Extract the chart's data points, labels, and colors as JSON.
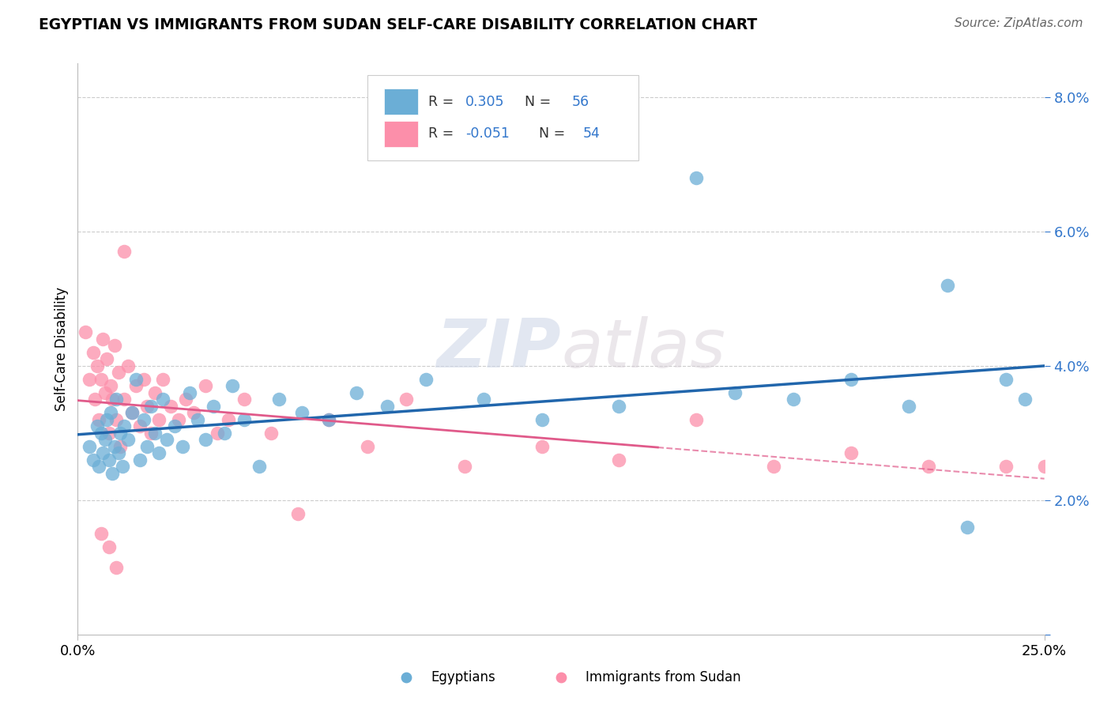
{
  "title": "EGYPTIAN VS IMMIGRANTS FROM SUDAN SELF-CARE DISABILITY CORRELATION CHART",
  "source": "Source: ZipAtlas.com",
  "ylabel": "Self-Care Disability",
  "xlim": [
    0.0,
    25.0
  ],
  "ylim": [
    0.0,
    8.5
  ],
  "legend_r1": "R =  0.305",
  "legend_n1": "N = 56",
  "legend_r2": "R = -0.051",
  "legend_n2": "N = 54",
  "blue_color": "#6baed6",
  "pink_color": "#fc8faa",
  "line_blue": "#2166ac",
  "line_pink": "#e05a8a",
  "watermark_zip": "ZIP",
  "watermark_atlas": "atlas",
  "legend_label1": "Egyptians",
  "legend_label2": "Immigrants from Sudan",
  "egyptians_x": [
    0.3,
    0.4,
    0.5,
    0.55,
    0.6,
    0.65,
    0.7,
    0.75,
    0.8,
    0.85,
    0.9,
    0.95,
    1.0,
    1.05,
    1.1,
    1.15,
    1.2,
    1.3,
    1.4,
    1.5,
    1.6,
    1.7,
    1.8,
    1.9,
    2.0,
    2.1,
    2.2,
    2.3,
    2.5,
    2.7,
    2.9,
    3.1,
    3.3,
    3.5,
    3.8,
    4.0,
    4.3,
    4.7,
    5.2,
    5.8,
    6.5,
    7.2,
    8.0,
    9.0,
    10.5,
    12.0,
    14.0,
    16.0,
    17.0,
    18.5,
    20.0,
    21.5,
    22.5,
    23.0,
    24.0,
    24.5
  ],
  "egyptians_y": [
    2.8,
    2.6,
    3.1,
    2.5,
    3.0,
    2.7,
    2.9,
    3.2,
    2.6,
    3.3,
    2.4,
    2.8,
    3.5,
    2.7,
    3.0,
    2.5,
    3.1,
    2.9,
    3.3,
    3.8,
    2.6,
    3.2,
    2.8,
    3.4,
    3.0,
    2.7,
    3.5,
    2.9,
    3.1,
    2.8,
    3.6,
    3.2,
    2.9,
    3.4,
    3.0,
    3.7,
    3.2,
    2.5,
    3.5,
    3.3,
    3.2,
    3.6,
    3.4,
    3.8,
    3.5,
    3.2,
    3.4,
    6.8,
    3.6,
    3.5,
    3.8,
    3.4,
    5.2,
    1.6,
    3.8,
    3.5
  ],
  "sudan_x": [
    0.2,
    0.3,
    0.4,
    0.45,
    0.5,
    0.55,
    0.6,
    0.65,
    0.7,
    0.75,
    0.8,
    0.85,
    0.9,
    0.95,
    1.0,
    1.05,
    1.1,
    1.2,
    1.3,
    1.4,
    1.5,
    1.6,
    1.7,
    1.8,
    1.9,
    2.0,
    2.1,
    2.2,
    2.4,
    2.6,
    2.8,
    3.0,
    3.3,
    3.6,
    3.9,
    4.3,
    5.0,
    5.7,
    6.5,
    7.5,
    8.5,
    10.0,
    12.0,
    14.0,
    16.0,
    18.0,
    20.0,
    22.0,
    24.0,
    25.0,
    1.2,
    0.8,
    0.6,
    1.0
  ],
  "sudan_y": [
    4.5,
    3.8,
    4.2,
    3.5,
    4.0,
    3.2,
    3.8,
    4.4,
    3.6,
    4.1,
    3.0,
    3.7,
    3.5,
    4.3,
    3.2,
    3.9,
    2.8,
    3.5,
    4.0,
    3.3,
    3.7,
    3.1,
    3.8,
    3.4,
    3.0,
    3.6,
    3.2,
    3.8,
    3.4,
    3.2,
    3.5,
    3.3,
    3.7,
    3.0,
    3.2,
    3.5,
    3.0,
    1.8,
    3.2,
    2.8,
    3.5,
    2.5,
    2.8,
    2.6,
    3.2,
    2.5,
    2.7,
    2.5,
    2.5,
    2.5,
    5.7,
    1.3,
    1.5,
    1.0
  ]
}
